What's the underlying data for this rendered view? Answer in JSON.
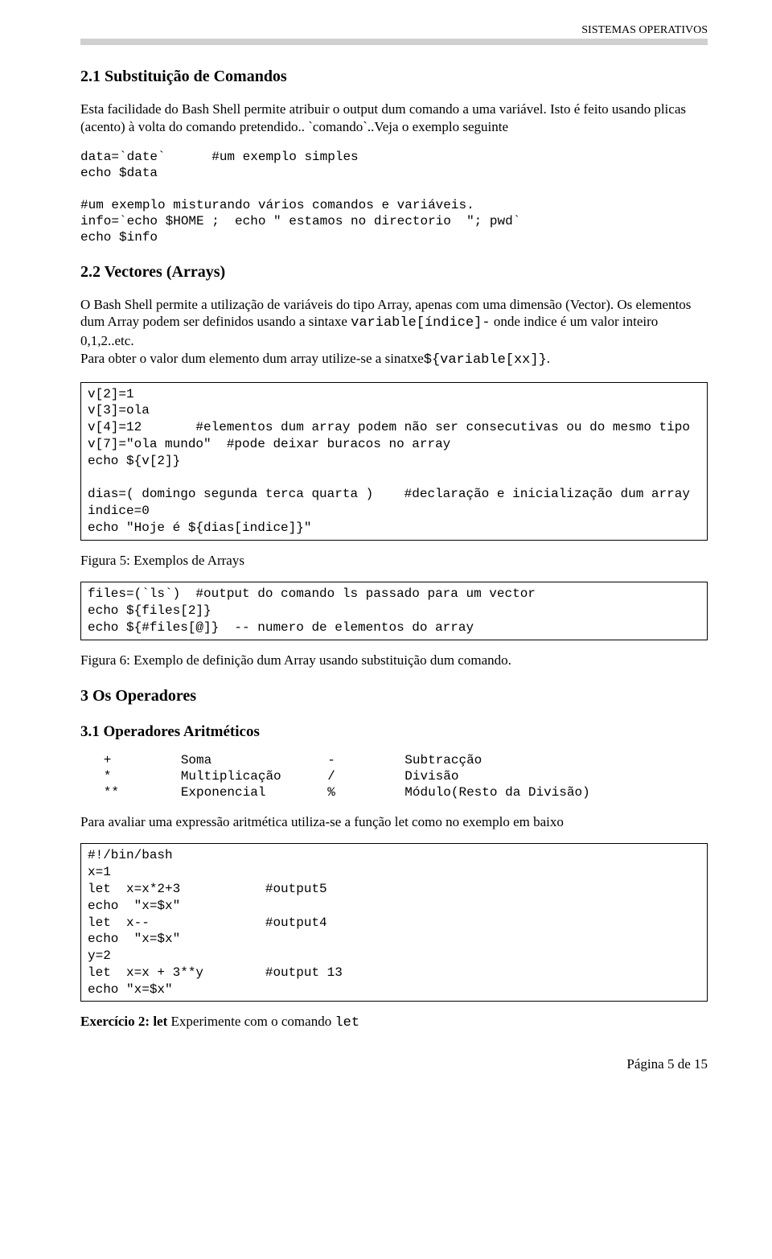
{
  "header": {
    "course": "SISTEMAS OPERATIVOS"
  },
  "s21": {
    "title": "2.1 Substituição de Comandos",
    "p1": "Esta facilidade do Bash Shell permite atribuir o output dum comando a uma variável. Isto é feito usando plicas (acento) à volta do comando pretendido.. `comando`..Veja o exemplo seguinte",
    "code": "data=`date`      #um exemplo simples\necho $data\n\n#um exemplo misturando vários comandos e variáveis.\ninfo=`echo $HOME ;  echo \" estamos no directorio  \"; pwd`\necho $info"
  },
  "s22": {
    "title": "2.2 Vectores (Arrays)",
    "p1_a": "O Bash Shell permite a utilização de variáveis do tipo Array, apenas com uma dimensão (Vector). Os elementos dum  Array podem ser definidos usando a sintaxe ",
    "p1_m1": "variable[índice]-",
    "p1_b": " onde indice é um valor inteiro 0,1,2..etc.",
    "p1_c": "Para obter o valor dum elemento dum array utilize-se a sinatxe",
    "p1_m2": "${variable[xx]}",
    "p1_d": ".",
    "code1": "v[2]=1\nv[3]=ola\nv[4]=12       #elementos dum array podem não ser consecutivas ou do mesmo tipo\nv[7]=\"ola mundo\"  #pode deixar buracos no array\necho ${v[2]}\n\ndias=( domingo segunda terca quarta )    #declaração e inicialização dum array\nindice=0\necho \"Hoje é ${dias[indice]}\"",
    "caption1": "Figura 5: Exemplos de Arrays",
    "code2": "files=(`ls`)  #output do comando ls passado para um vector\necho ${files[2]}\necho ${#files[@]}  -- numero de elementos do array",
    "caption2": "Figura 6: Exemplo de definição dum Array usando substituição dum comando."
  },
  "s3": {
    "title": "3 Os Operadores"
  },
  "s31": {
    "title": "3.1 Operadores Aritméticos",
    "table": "   +         Soma               -         Subtracção\n   *         Multiplicação      /         Divisão\n   **        Exponencial        %         Módulo(Resto da Divisão)",
    "p1": "Para avaliar uma expressão aritmética utiliza-se a função let como no exemplo em baixo",
    "code": "#!/bin/bash\nx=1\nlet  x=x*2+3           #output5\necho  \"x=$x\"\nlet  x--               #output4\necho  \"x=$x\"\ny=2\nlet  x=x + 3**y        #output 13\necho \"x=$x\"",
    "ex_a": "Exercício 2: let",
    "ex_b": " Experimente com o comando ",
    "ex_c": "let"
  },
  "footer": {
    "text": "Página 5 de 15"
  }
}
